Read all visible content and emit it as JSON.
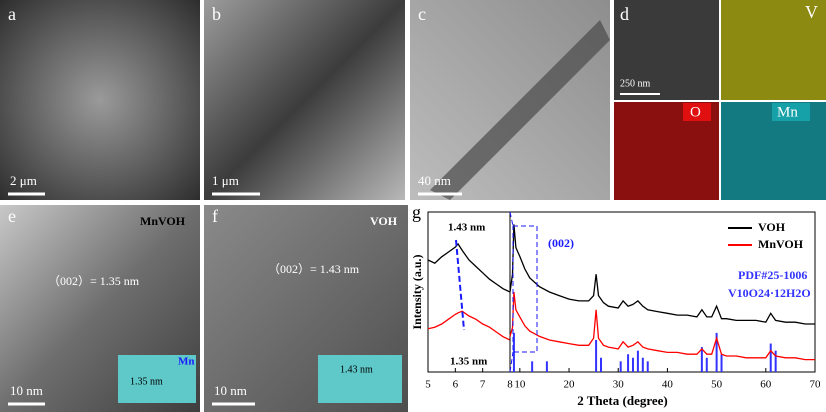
{
  "panels": [
    {
      "label": "a",
      "scale_bar": "2 μm"
    },
    {
      "label": "b",
      "scale_bar": "1 μm"
    },
    {
      "label": "c",
      "scale_bar": "40 nm"
    },
    {
      "label": "d",
      "scale_bar": "250 nm",
      "maps": [
        "V",
        "O",
        "Mn"
      ]
    },
    {
      "label": "e",
      "title": "MnVOH",
      "annotation": "（002）= 1.35 nm",
      "inset_labels": [
        "Mn",
        "1.35 nm"
      ],
      "scale_bar": "10 nm"
    },
    {
      "label": "f",
      "title": "VOH",
      "annotation": "（002）= 1.43 nm",
      "inset_labels": [
        "1.43 nm"
      ],
      "scale_bar": "10 nm"
    },
    {
      "label": "g"
    }
  ],
  "chart_data": [
    {
      "type": "line",
      "ylabel": "Intensity (a.u.)",
      "x": [
        5,
        5.25,
        5.5,
        5.75,
        6,
        6.1,
        6.25,
        6.5,
        6.75,
        7,
        7.25,
        7.5,
        7.75,
        8
      ],
      "series": [
        {
          "name": "VOH",
          "color": "#000000",
          "values": [
            70,
            68,
            72,
            75,
            78,
            80,
            76,
            70,
            66,
            62,
            58,
            55,
            52,
            50
          ]
        },
        {
          "name": "MnVOH",
          "color": "#ff0000",
          "values": [
            27,
            28,
            30,
            33,
            36,
            37,
            38,
            35,
            33,
            30,
            28,
            25,
            22,
            20
          ]
        }
      ],
      "xlim": [
        5,
        8
      ],
      "xticks": [
        5,
        6,
        7,
        8
      ],
      "ylim": [
        0,
        100
      ],
      "annotations": [
        "1.43 nm",
        "1.35 nm"
      ]
    },
    {
      "type": "line",
      "xlabel": "2 Theta (degree)",
      "x": [
        8,
        8.5,
        8.8,
        9.2,
        10,
        11,
        12,
        14,
        16,
        18,
        20,
        22,
        24,
        25,
        25.5,
        26,
        27,
        28,
        30,
        31,
        32,
        33,
        34,
        35,
        36,
        38,
        40,
        42,
        44,
        46,
        47,
        48,
        49,
        50,
        51,
        52,
        54,
        56,
        58,
        60,
        61,
        62,
        64,
        66,
        68,
        70
      ],
      "series": [
        {
          "name": "VOH",
          "color": "#000000",
          "values": [
            50,
            60,
            88,
            75,
            70,
            63,
            58,
            53,
            50,
            48,
            46,
            45,
            45,
            48,
            60,
            48,
            44,
            42,
            41,
            45,
            42,
            43,
            45,
            42,
            40,
            39,
            38,
            37,
            37,
            36,
            40,
            36,
            36,
            42,
            35,
            35,
            34,
            34,
            34,
            33,
            38,
            34,
            33,
            33,
            32,
            32
          ]
        },
        {
          "name": "MnVOH",
          "color": "#ff0000",
          "values": [
            25,
            30,
            50,
            40,
            36,
            31,
            28,
            25,
            23,
            22,
            21,
            20,
            20,
            24,
            40,
            24,
            20,
            19,
            18,
            22,
            19,
            20,
            22,
            19,
            18,
            17,
            16,
            16,
            15,
            15,
            18,
            15,
            15,
            24,
            15,
            14,
            14,
            13,
            13,
            13,
            17,
            14,
            13,
            13,
            12,
            12
          ]
        }
      ],
      "reference": {
        "label": "PDF#25-1006",
        "formula": "V10O24·12H2O",
        "color": "#3333ff",
        "x": [
          8.8,
          12.5,
          15.5,
          25.5,
          26.5,
          30.5,
          32,
          33,
          34,
          35,
          36,
          47,
          48,
          50,
          51,
          61,
          62
        ],
        "values": [
          22,
          6,
          6,
          18,
          8,
          6,
          10,
          8,
          12,
          8,
          6,
          14,
          8,
          22,
          10,
          16,
          12
        ]
      },
      "xlim": [
        8,
        70
      ],
      "xticks": [
        10,
        20,
        30,
        40,
        50,
        60,
        70
      ],
      "ylim": [
        5,
        95
      ],
      "annotations": [
        "(002)"
      ],
      "legend": "upper right"
    }
  ]
}
